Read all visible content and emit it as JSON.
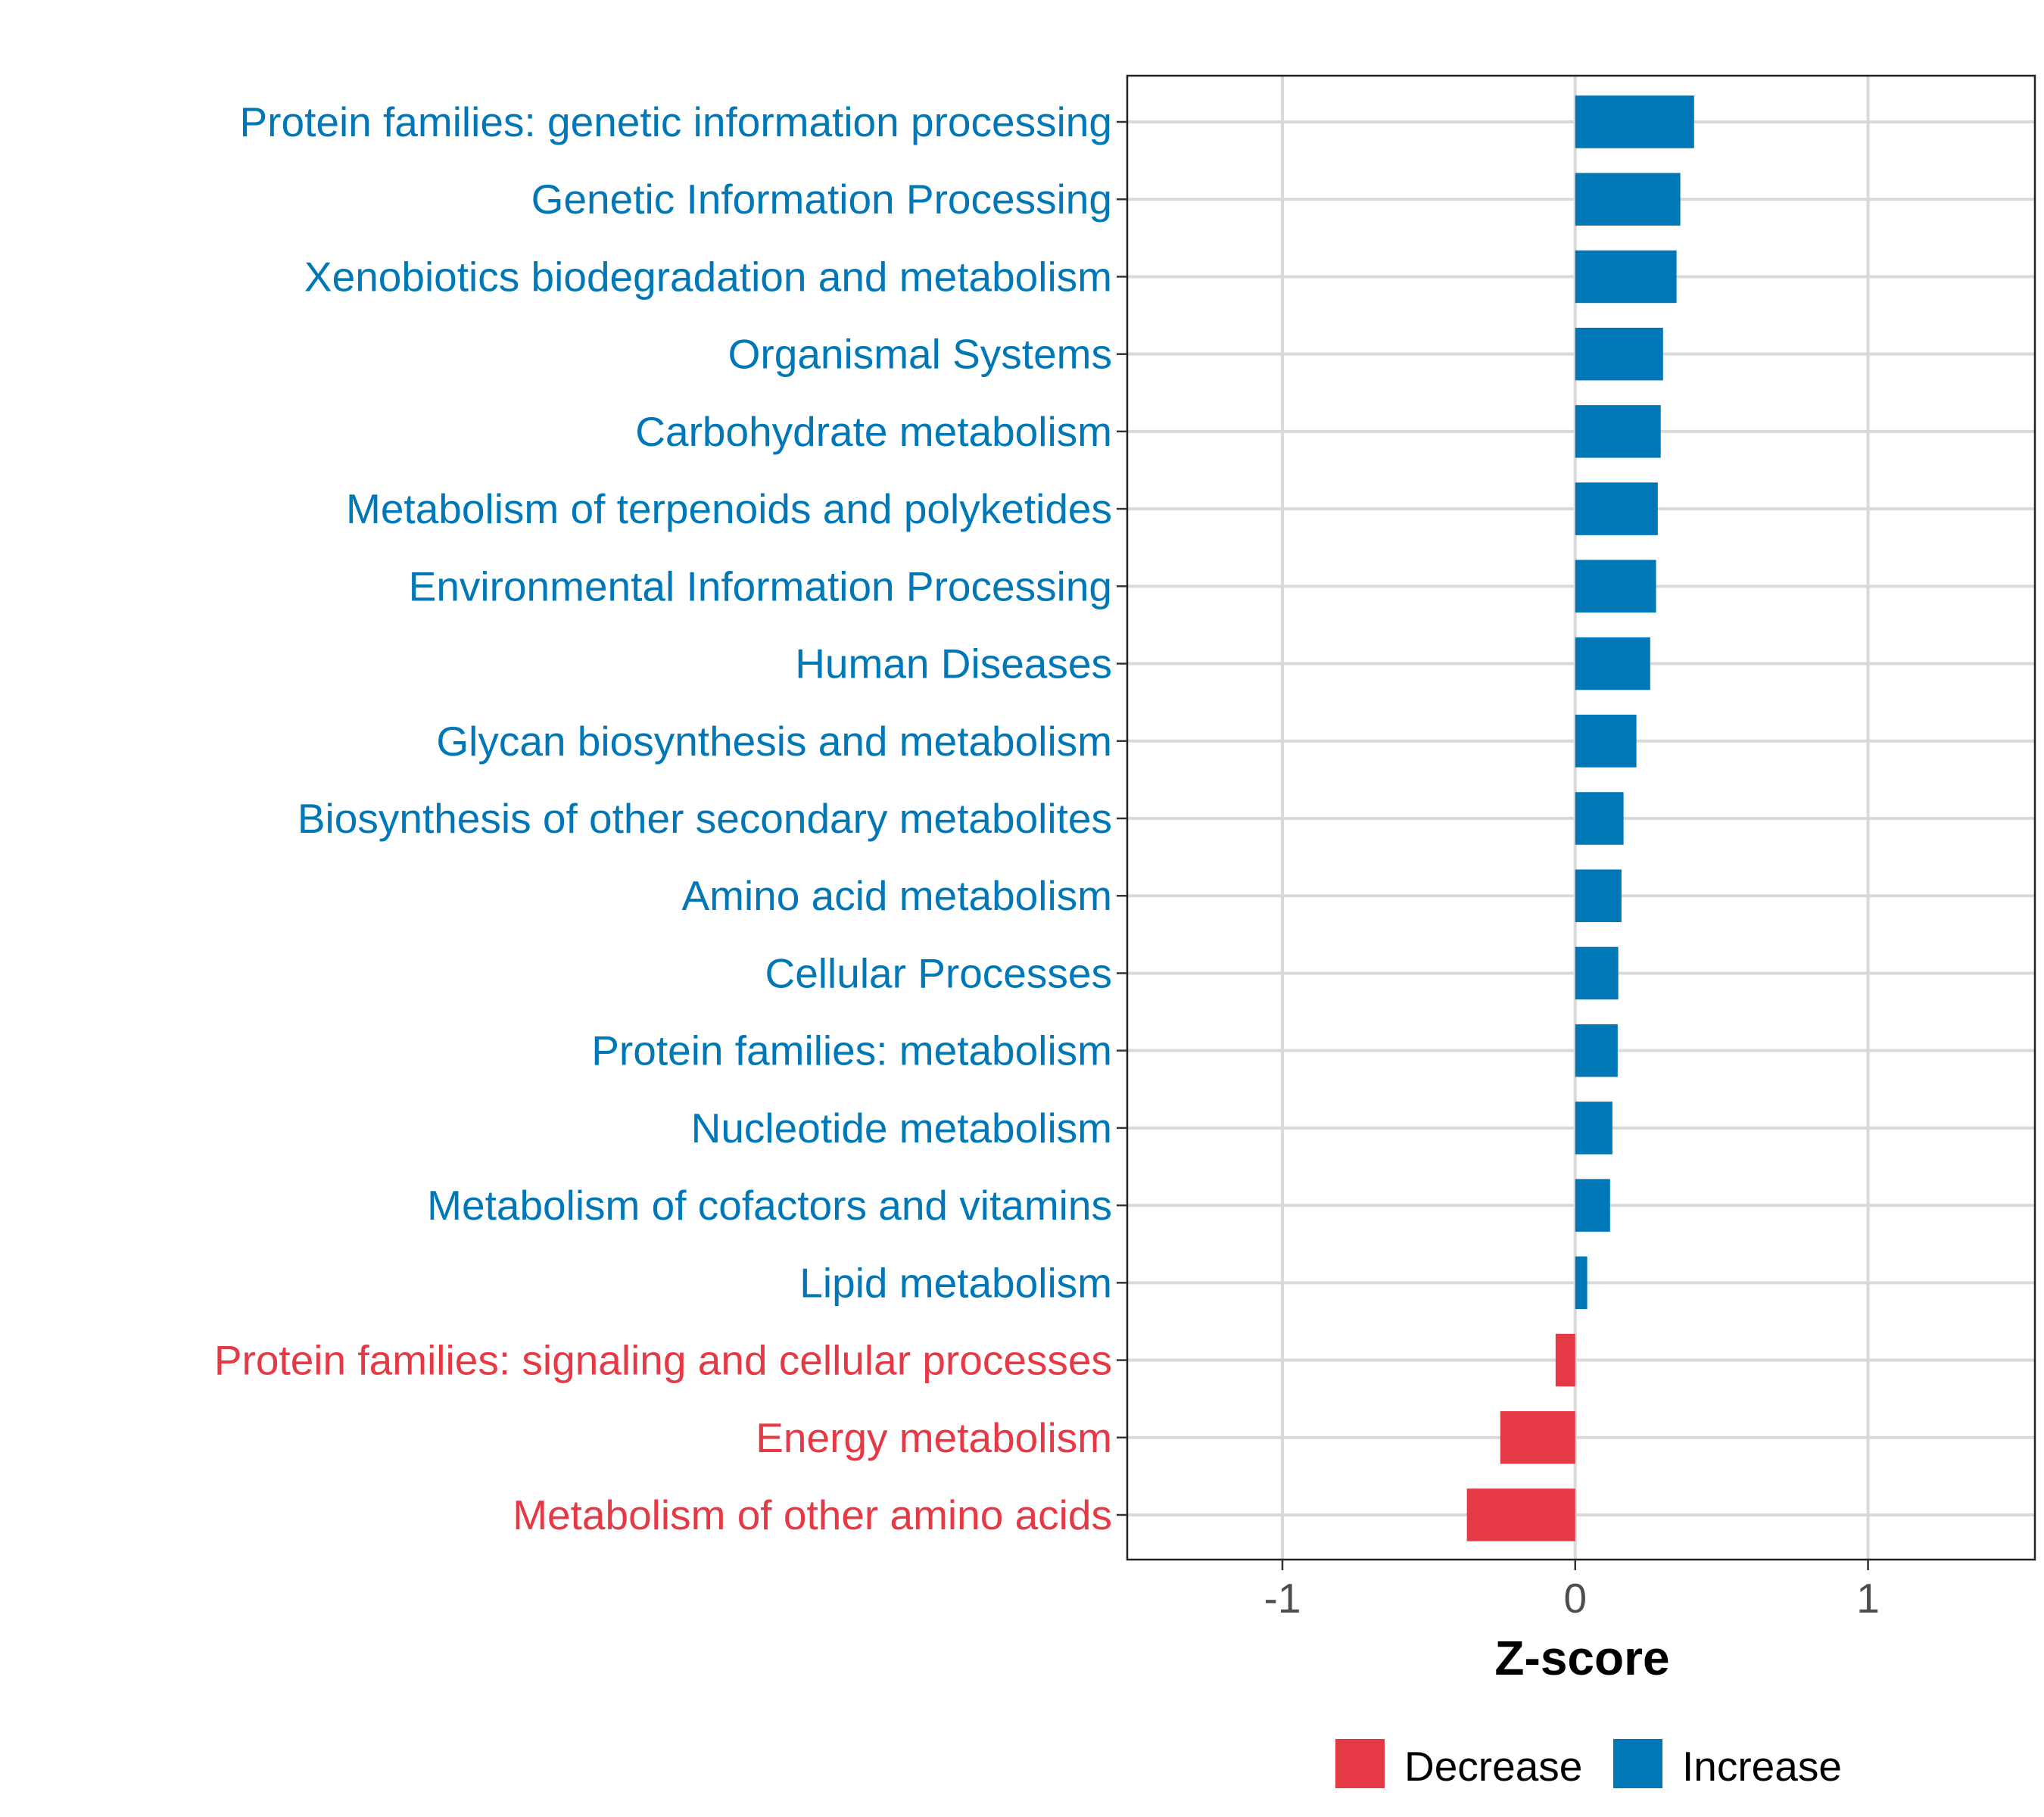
{
  "chart_data": {
    "type": "bar",
    "orientation": "horizontal",
    "title": "",
    "xlabel": "Z-score",
    "ylabel": "",
    "xlim": [
      -1.53,
      1.57
    ],
    "xticks": [
      -1,
      0,
      1
    ],
    "xtick_labels": [
      "-1",
      "0",
      "1"
    ],
    "grid": true,
    "legend_position": "bottom",
    "colors": {
      "Decrease": "#E63946",
      "Increase": "#0077B6"
    },
    "legend": [
      {
        "label": "Decrease",
        "color": "#E63946"
      },
      {
        "label": "Increase",
        "color": "#0077B6"
      }
    ],
    "categories": [
      "Protein families: genetic information processing",
      "Genetic Information Processing",
      "Xenobiotics biodegradation and metabolism",
      "Organismal Systems",
      "Carbohydrate metabolism",
      "Metabolism of terpenoids and polyketides",
      "Environmental Information Processing",
      "Human Diseases",
      "Glycan biosynthesis and metabolism",
      "Biosynthesis of other secondary metabolites",
      "Amino acid metabolism",
      "Cellular Processes",
      "Protein families: metabolism",
      "Nucleotide metabolism",
      "Metabolism of cofactors and vitamins",
      "Lipid metabolism",
      "Protein families: signaling and cellular processes",
      "Energy metabolism",
      "Metabolism of other amino acids"
    ],
    "values": [
      0.406,
      0.359,
      0.346,
      0.3,
      0.292,
      0.282,
      0.276,
      0.256,
      0.209,
      0.165,
      0.158,
      0.147,
      0.145,
      0.127,
      0.119,
      0.041,
      -0.067,
      -0.256,
      -0.37
    ],
    "groups": [
      "Increase",
      "Increase",
      "Increase",
      "Increase",
      "Increase",
      "Increase",
      "Increase",
      "Increase",
      "Increase",
      "Increase",
      "Increase",
      "Increase",
      "Increase",
      "Increase",
      "Increase",
      "Increase",
      "Decrease",
      "Decrease",
      "Decrease"
    ]
  }
}
